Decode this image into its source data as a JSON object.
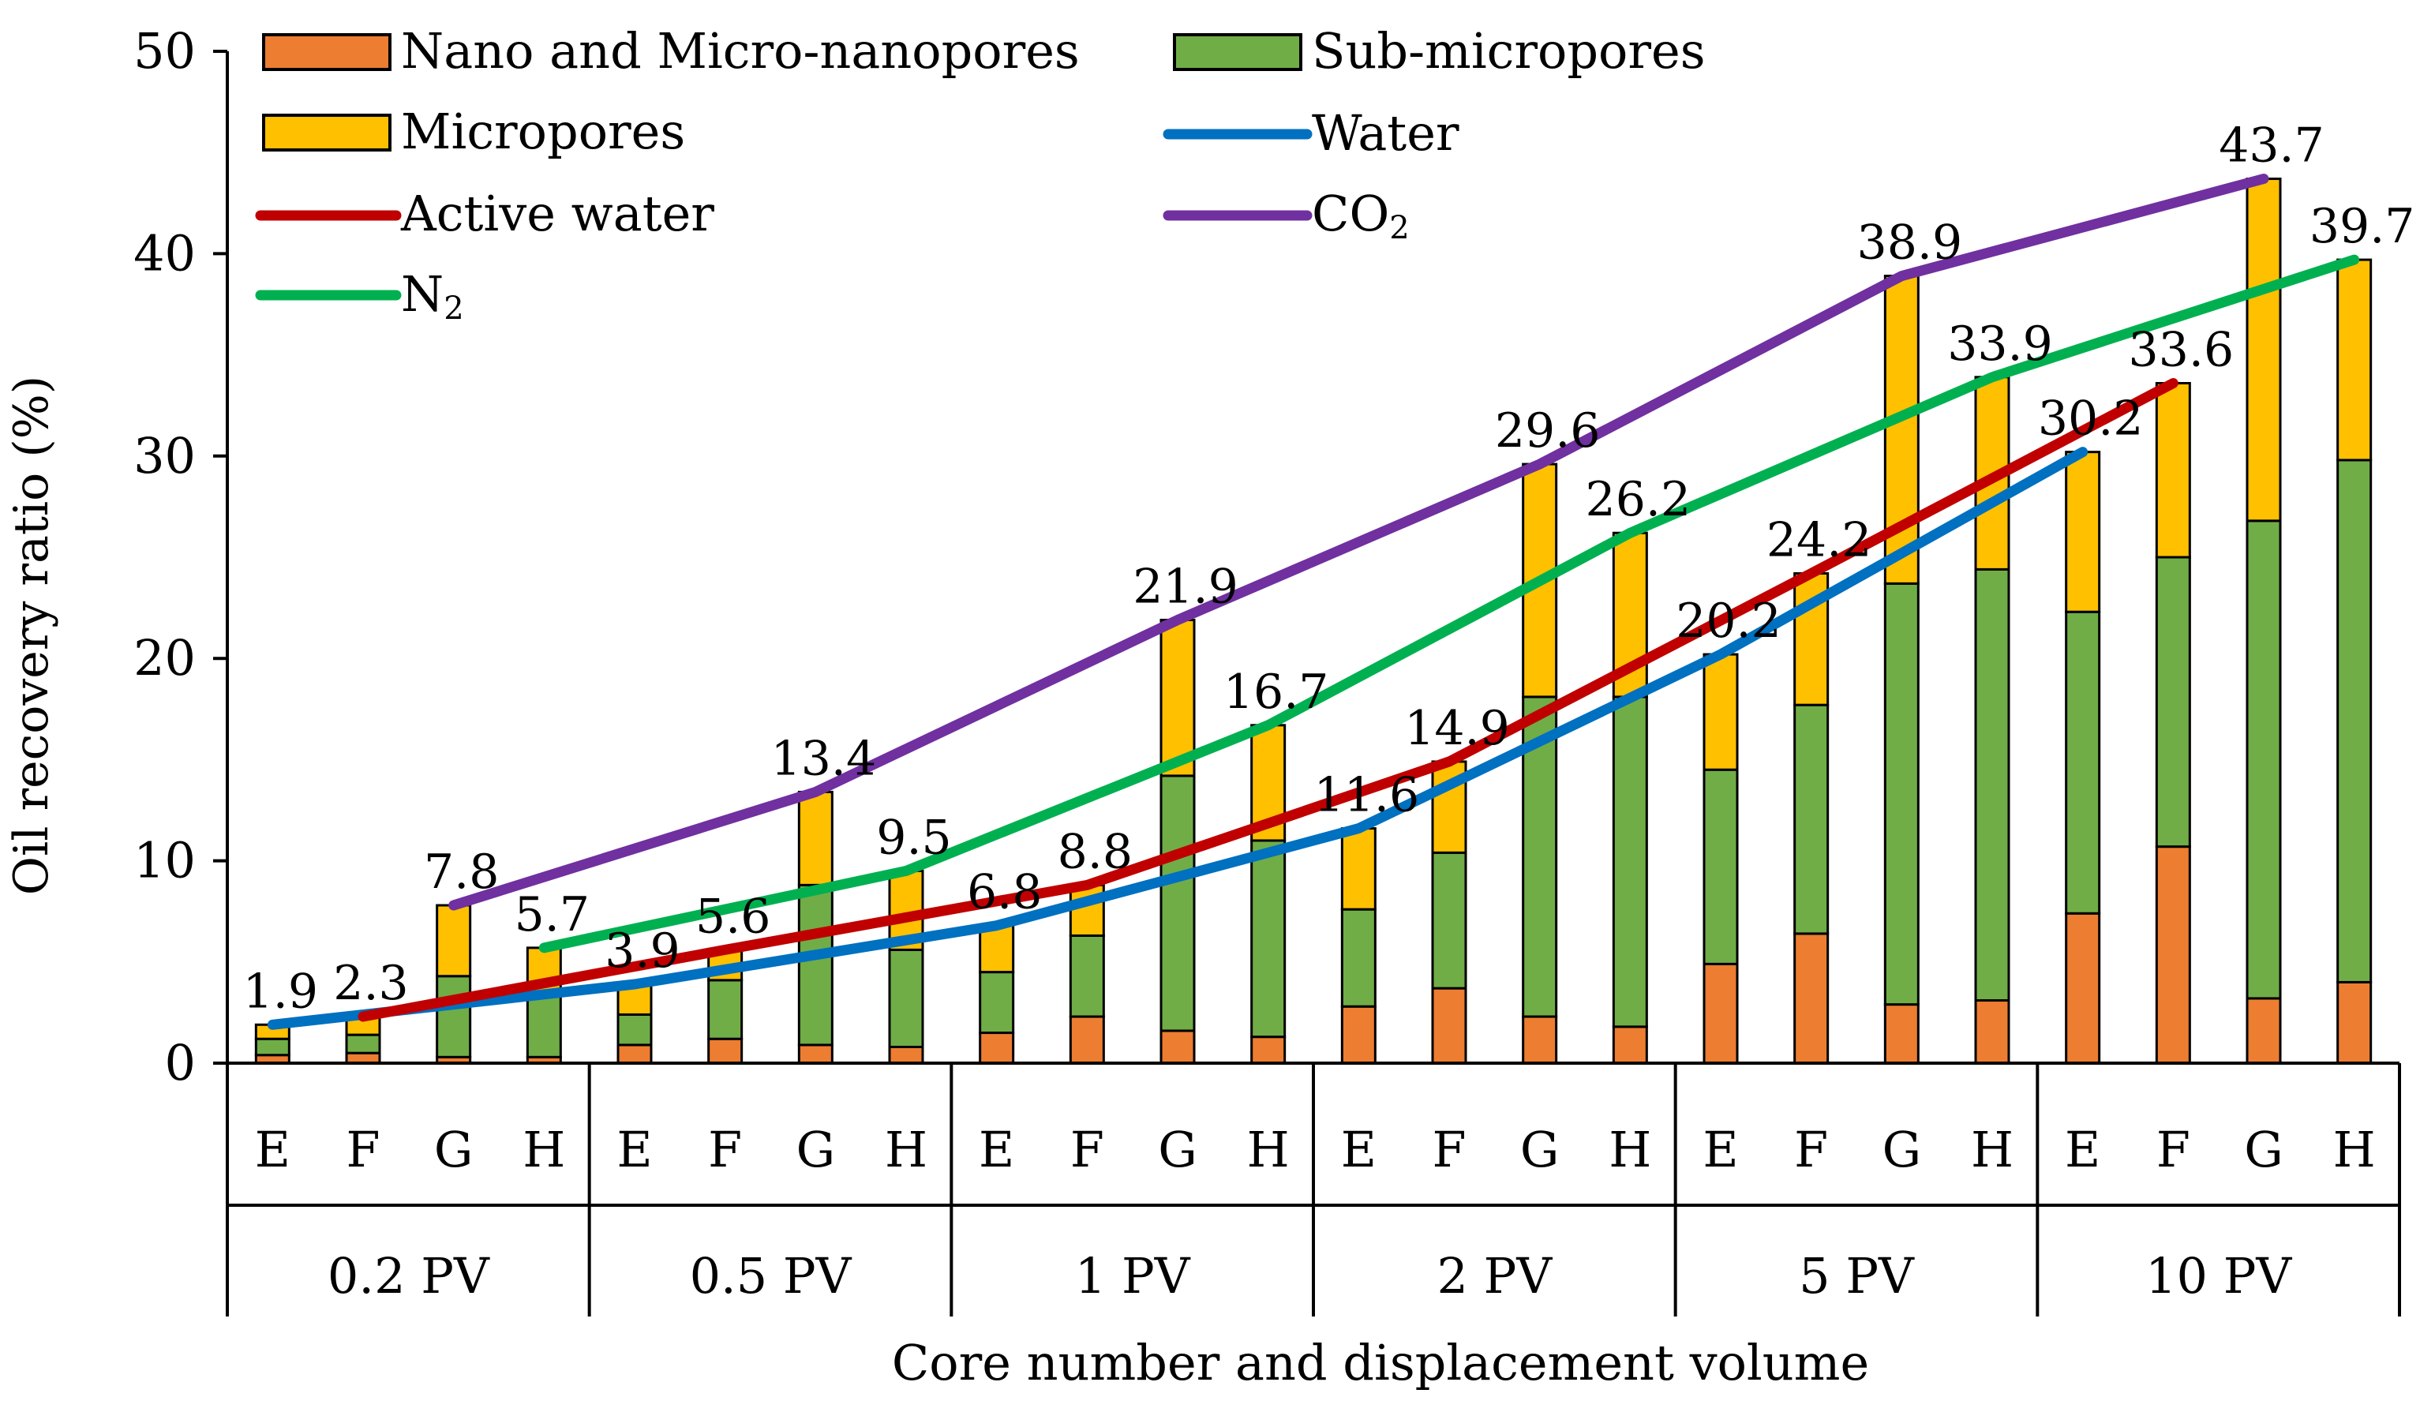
{
  "chart_data": {
    "type": "stacked-bar-with-lines",
    "ylabel": "Oil recovery ratio (%)",
    "xlabel": "Core number and displacement volume",
    "ylim": [
      0,
      50
    ],
    "yticks": [
      "0",
      "10",
      "20",
      "30",
      "40",
      "50"
    ],
    "grid": false,
    "legend_position": "top-left",
    "colors": {
      "nano": "#ED7D31",
      "sub": "#70AD47",
      "micro": "#FFC000",
      "water": "#0070C0",
      "active_water": "#C00000",
      "co2": "#7030A0",
      "n2": "#00B050"
    },
    "legend": {
      "nano": "Nano and Micro-nanopores",
      "sub": "Sub-micropores",
      "micro": "Micropores",
      "water": "Water",
      "active_water": "Active water",
      "co2": "CO",
      "co2_sub": "2",
      "n2": "N",
      "n2_sub": "2"
    },
    "cores": [
      "E",
      "F",
      "G",
      "H"
    ],
    "groups": [
      "0.2 PV",
      "0.5 PV",
      "1 PV",
      "2 PV",
      "5 PV",
      "10 PV"
    ],
    "bars": [
      {
        "core": "E",
        "group": "0.2 PV",
        "nano": 0.4,
        "sub": 0.8,
        "micro": 0.7,
        "total": 1.9,
        "label": "1.9"
      },
      {
        "core": "F",
        "group": "0.2 PV",
        "nano": 0.5,
        "sub": 0.9,
        "micro": 0.9,
        "total": 2.3,
        "label": "2.3"
      },
      {
        "core": "G",
        "group": "0.2 PV",
        "nano": 0.3,
        "sub": 4.0,
        "micro": 3.5,
        "total": 7.8,
        "label": "7.8"
      },
      {
        "core": "H",
        "group": "0.2 PV",
        "nano": 0.3,
        "sub": 3.1,
        "micro": 2.3,
        "total": 5.7,
        "label": "5.7"
      },
      {
        "core": "E",
        "group": "0.5 PV",
        "nano": 0.9,
        "sub": 1.5,
        "micro": 1.5,
        "total": 3.9,
        "label": "3.9"
      },
      {
        "core": "F",
        "group": "0.5 PV",
        "nano": 1.2,
        "sub": 2.9,
        "micro": 1.5,
        "total": 5.6,
        "label": "5.6"
      },
      {
        "core": "G",
        "group": "0.5 PV",
        "nano": 0.9,
        "sub": 7.9,
        "micro": 4.6,
        "total": 13.4,
        "label": "13.4"
      },
      {
        "core": "H",
        "group": "0.5 PV",
        "nano": 0.8,
        "sub": 4.8,
        "micro": 3.9,
        "total": 9.5,
        "label": "9.5"
      },
      {
        "core": "E",
        "group": "1 PV",
        "nano": 1.5,
        "sub": 3.0,
        "micro": 2.3,
        "total": 6.8,
        "label": "6.8"
      },
      {
        "core": "F",
        "group": "1 PV",
        "nano": 2.3,
        "sub": 4.0,
        "micro": 2.5,
        "total": 8.8,
        "label": "8.8"
      },
      {
        "core": "G",
        "group": "1 PV",
        "nano": 1.6,
        "sub": 12.6,
        "micro": 7.7,
        "total": 21.9,
        "label": "21.9"
      },
      {
        "core": "H",
        "group": "1 PV",
        "nano": 1.3,
        "sub": 9.7,
        "micro": 5.7,
        "total": 16.7,
        "label": "16.7"
      },
      {
        "core": "E",
        "group": "2 PV",
        "nano": 2.8,
        "sub": 4.8,
        "micro": 4.0,
        "total": 11.6,
        "label": "11.6"
      },
      {
        "core": "F",
        "group": "2 PV",
        "nano": 3.7,
        "sub": 6.7,
        "micro": 4.5,
        "total": 14.9,
        "label": "14.9"
      },
      {
        "core": "G",
        "group": "2 PV",
        "nano": 2.3,
        "sub": 15.8,
        "micro": 11.5,
        "total": 29.6,
        "label": "29.6"
      },
      {
        "core": "H",
        "group": "2 PV",
        "nano": 1.8,
        "sub": 16.3,
        "micro": 8.1,
        "total": 26.2,
        "label": "26.2"
      },
      {
        "core": "E",
        "group": "5 PV",
        "nano": 4.9,
        "sub": 9.6,
        "micro": 5.7,
        "total": 20.2,
        "label": "20.2"
      },
      {
        "core": "F",
        "group": "5 PV",
        "nano": 6.4,
        "sub": 11.3,
        "micro": 6.5,
        "total": 24.2,
        "label": "24.2"
      },
      {
        "core": "G",
        "group": "5 PV",
        "nano": 2.9,
        "sub": 20.8,
        "micro": 15.2,
        "total": 38.9,
        "label": "38.9"
      },
      {
        "core": "H",
        "group": "5 PV",
        "nano": 3.1,
        "sub": 21.3,
        "micro": 9.5,
        "total": 33.9,
        "label": "33.9"
      },
      {
        "core": "E",
        "group": "10 PV",
        "nano": 7.4,
        "sub": 14.9,
        "micro": 7.9,
        "total": 30.2,
        "label": "30.2"
      },
      {
        "core": "F",
        "group": "10 PV",
        "nano": 10.7,
        "sub": 14.3,
        "micro": 8.6,
        "total": 33.6,
        "label": "33.6"
      },
      {
        "core": "G",
        "group": "10 PV",
        "nano": 3.2,
        "sub": 23.6,
        "micro": 16.9,
        "total": 43.7,
        "label": "43.7"
      },
      {
        "core": "H",
        "group": "10 PV",
        "nano": 4.0,
        "sub": 25.8,
        "micro": 9.9,
        "total": 39.7,
        "label": "39.7"
      }
    ],
    "lines": [
      {
        "key": "water",
        "name": "Water",
        "points": [
          [
            0,
            1.9
          ],
          [
            4,
            3.9
          ],
          [
            8,
            6.8
          ],
          [
            12,
            11.6
          ],
          [
            16,
            20.2
          ],
          [
            20,
            30.2
          ]
        ]
      },
      {
        "key": "active_water",
        "name": "Active water",
        "points": [
          [
            1,
            2.3
          ],
          [
            5,
            5.6
          ],
          [
            9,
            8.8
          ],
          [
            13,
            14.9
          ],
          [
            17,
            24.2
          ],
          [
            21,
            33.6
          ]
        ]
      },
      {
        "key": "co2",
        "name": "CO2",
        "points": [
          [
            2,
            7.8
          ],
          [
            6,
            13.4
          ],
          [
            10,
            21.9
          ],
          [
            14,
            29.6
          ],
          [
            18,
            38.9
          ],
          [
            22,
            43.7
          ]
        ]
      },
      {
        "key": "n2",
        "name": "N2",
        "points": [
          [
            3,
            5.7
          ],
          [
            7,
            9.5
          ],
          [
            11,
            16.7
          ],
          [
            15,
            26.2
          ],
          [
            19,
            33.9
          ],
          [
            23,
            39.7
          ]
        ]
      }
    ]
  }
}
